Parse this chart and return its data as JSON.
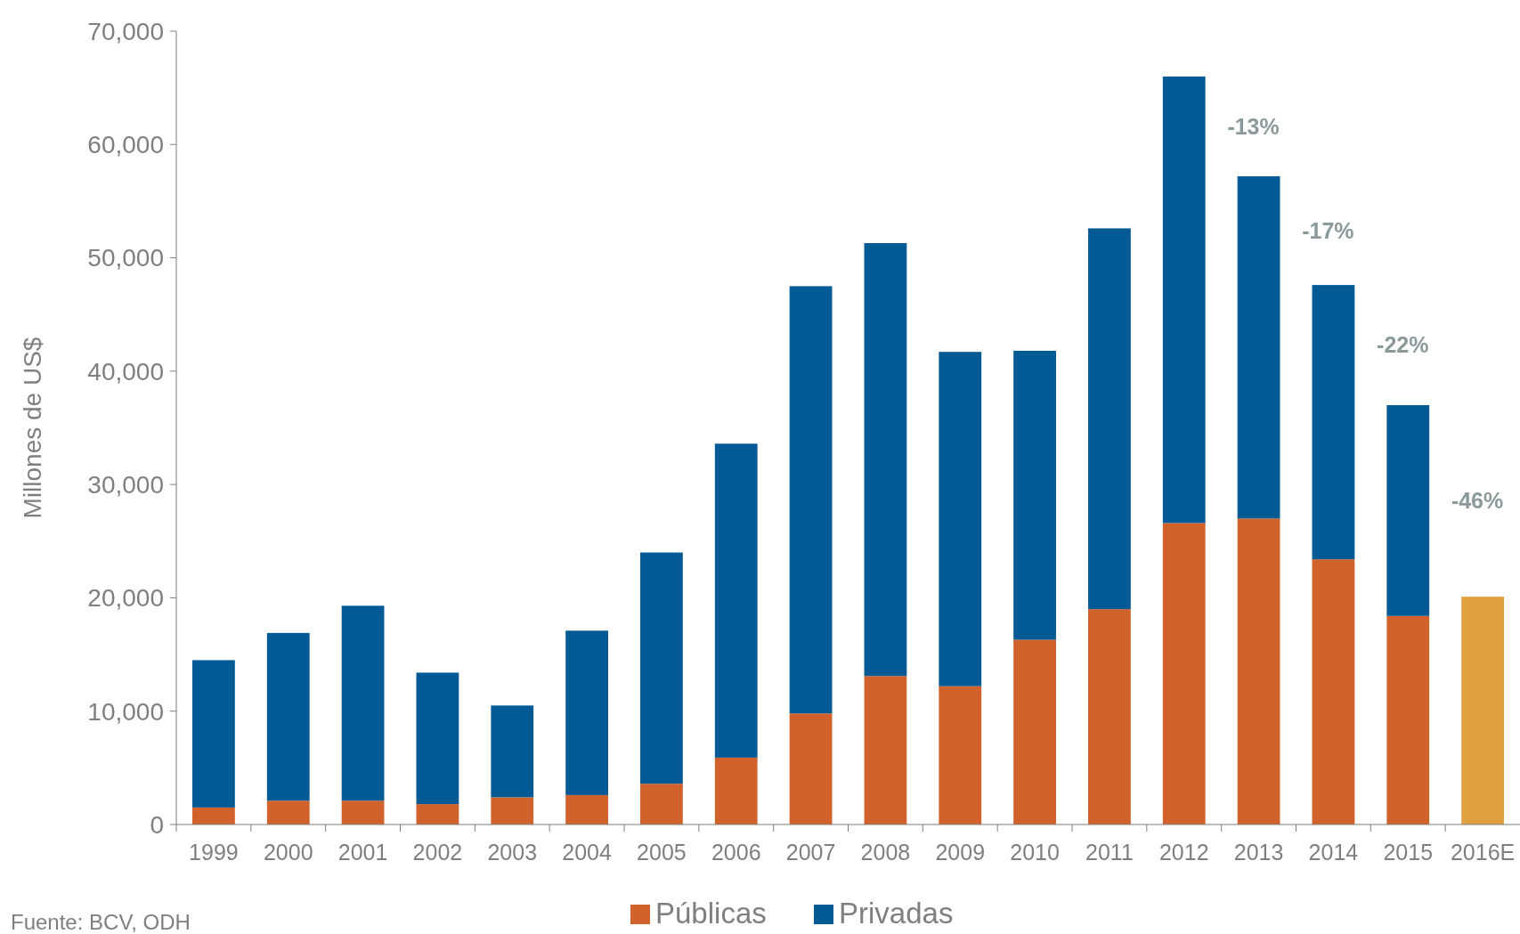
{
  "chart_data": {
    "type": "bar",
    "stacked": true,
    "ylabel": "Millones de US$",
    "categories": [
      "1999",
      "2000",
      "2001",
      "2002",
      "2003",
      "2004",
      "2005",
      "2006",
      "2007",
      "2008",
      "2009",
      "2010",
      "2011",
      "2012",
      "2013",
      "2014",
      "2015",
      "2016E"
    ],
    "series": [
      {
        "name": "Públicas",
        "color": "#d2622b",
        "colors": [
          "#d2622b",
          "#d2622b",
          "#d2622b",
          "#d2622b",
          "#d2622b",
          "#d2622b",
          "#d2622b",
          "#d2622b",
          "#d2622b",
          "#d2622b",
          "#d2622b",
          "#d2622b",
          "#d2622b",
          "#d2622b",
          "#d2622b",
          "#d2622b",
          "#d2622b",
          "#e0a040"
        ],
        "values": [
          1500,
          2100,
          2100,
          1800,
          2400,
          2600,
          3600,
          5900,
          9800,
          13100,
          12200,
          16300,
          19000,
          26600,
          27000,
          23400,
          18400,
          20100
        ]
      },
      {
        "name": "Privadas",
        "color": "#045a94",
        "values": [
          13000,
          14800,
          17200,
          11600,
          8100,
          14500,
          20400,
          27700,
          37700,
          38200,
          29500,
          25500,
          33600,
          39400,
          30200,
          24200,
          18600,
          null
        ]
      }
    ],
    "ylim": [
      0,
      70000
    ],
    "yticks": [
      {
        "value": 0,
        "label": "0"
      },
      {
        "value": 10000,
        "label": "10,000"
      },
      {
        "value": 20000,
        "label": "20,000"
      },
      {
        "value": 30000,
        "label": "30,000"
      },
      {
        "value": 40000,
        "label": "40,000"
      },
      {
        "value": 50000,
        "label": "50,000"
      },
      {
        "value": 60000,
        "label": "60,000"
      },
      {
        "value": 70000,
        "label": "70,000"
      }
    ],
    "grid": false,
    "legend": "bottom",
    "annotations": [
      "-13%",
      "-17%",
      "-22%",
      "-46%",
      "Fuente: BCV, ODH"
    ]
  }
}
